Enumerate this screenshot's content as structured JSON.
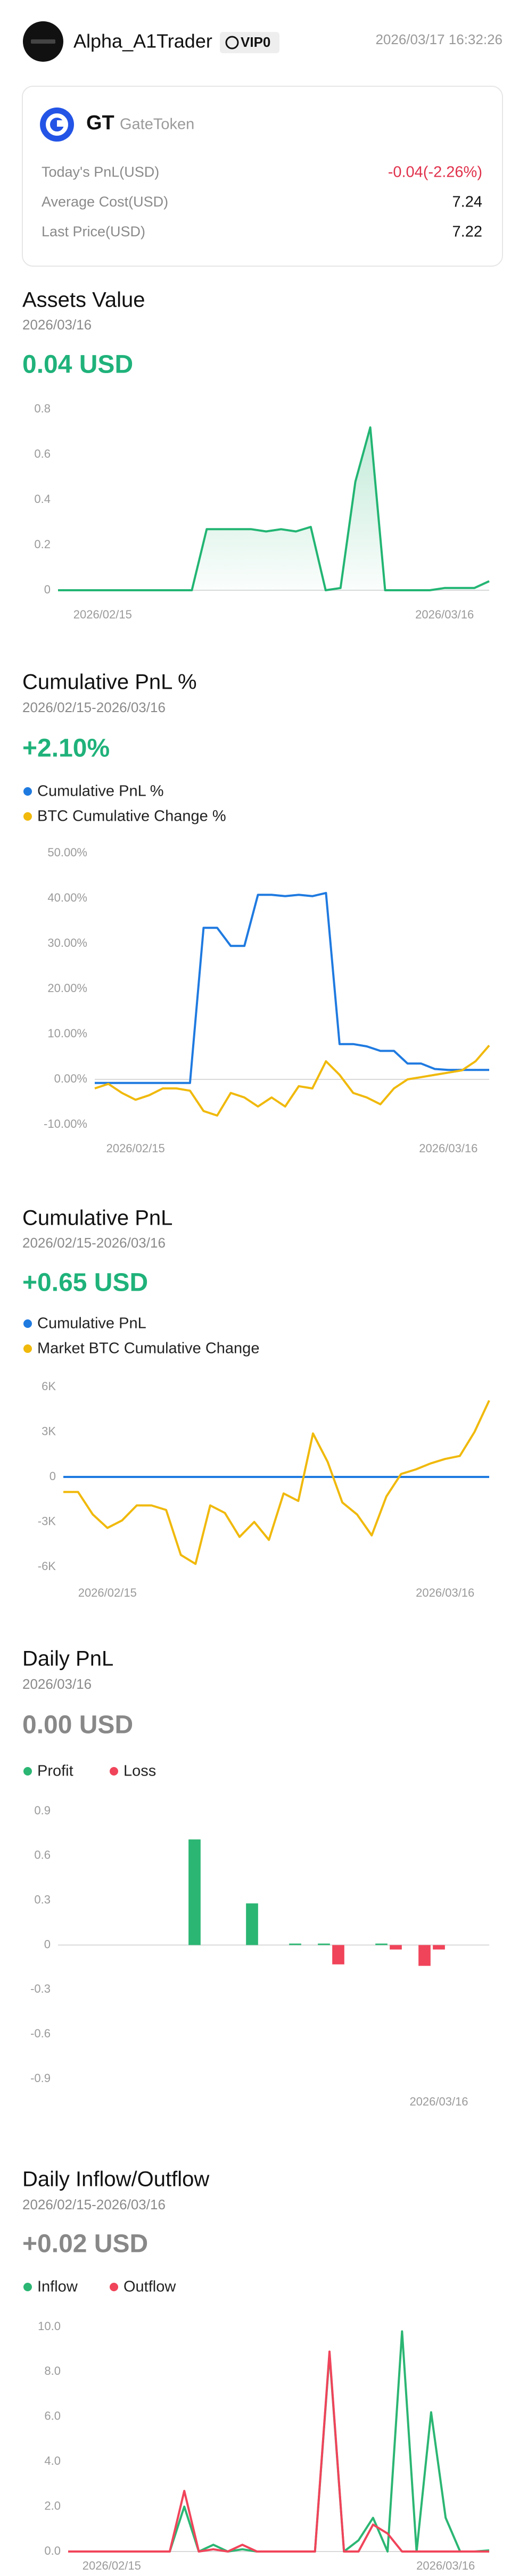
{
  "header": {
    "name": "Alpha_A1Trader",
    "badge": "VIP0",
    "timestamp": "2026/03/17 16:32:26"
  },
  "card": {
    "symbol": "GT",
    "name": "GateToken",
    "rows": [
      {
        "label": "Today's PnL(USD)",
        "value": "-0.04(-2.26%)",
        "color": "#e0314b"
      },
      {
        "label": "Average Cost(USD)",
        "value": "7.24",
        "color": "#111111"
      },
      {
        "label": "Last Price(USD)",
        "value": "7.22",
        "color": "#111111"
      }
    ]
  },
  "chart_data": [
    {
      "type": "line",
      "title": "Assets Value",
      "subtitle": "2026/03/16",
      "summary": "0.04 USD",
      "summary_color": "#1fb27a",
      "area": true,
      "color": "#22b573",
      "grid": false,
      "categories": [
        null,
        null,
        null,
        "2026/02/15",
        null,
        null,
        null,
        null,
        null,
        null,
        null,
        null,
        null,
        null,
        null,
        null,
        null,
        null,
        null,
        null,
        null,
        null,
        null,
        null,
        null,
        null,
        "2026/03/16",
        null,
        null,
        null
      ],
      "values": [
        0,
        0,
        0,
        0,
        0,
        0,
        0,
        0,
        0,
        0,
        0.27,
        0.27,
        0.27,
        0.27,
        0.26,
        0.27,
        0.26,
        0.28,
        0,
        0.01,
        0.48,
        0.72,
        0,
        0,
        0,
        0,
        0.01,
        0.01,
        0.01,
        0.04
      ],
      "ylim": [
        0,
        0.8
      ],
      "yticks": [
        0,
        0.2,
        0.4,
        0.6,
        0.8
      ]
    },
    {
      "type": "line",
      "title": "Cumulative PnL %",
      "subtitle": "2026/02/15-2026/03/16",
      "summary": "+2.10%",
      "summary_color": "#1fb27a",
      "legend": "stacked",
      "grid": false,
      "categories": [
        null,
        null,
        null,
        "2026/02/15",
        null,
        null,
        null,
        null,
        null,
        null,
        null,
        null,
        null,
        null,
        null,
        null,
        null,
        null,
        null,
        null,
        null,
        null,
        null,
        null,
        null,
        null,
        "2026/03/16",
        null,
        null,
        null
      ],
      "series": [
        {
          "name": "Cumulative PnL %",
          "color": "#1f7ae0",
          "values": [
            -0.8,
            -0.8,
            -0.8,
            -0.8,
            -0.8,
            -0.8,
            -0.8,
            -0.8,
            33.5,
            33.5,
            29.5,
            29.5,
            40.8,
            40.8,
            40.5,
            40.8,
            40.5,
            41.2,
            7.8,
            7.8,
            7.3,
            6.3,
            6.3,
            3.5,
            3.5,
            2.3,
            2.1,
            2.1,
            2.1,
            2.1
          ]
        },
        {
          "name": "BTC Cumulative Change %",
          "color": "#f0b90b",
          "values": [
            -2,
            -1,
            -3,
            -4.5,
            -3.5,
            -2,
            -2,
            -2.5,
            -7,
            -8,
            -3,
            -4,
            -6,
            -4,
            -6,
            -1.5,
            -2,
            4,
            1,
            -3,
            -4,
            -5.5,
            -2,
            0,
            0.5,
            1,
            1.5,
            2,
            4,
            7.5
          ]
        }
      ],
      "ylim": [
        -10,
        50
      ],
      "yticks": [
        {
          "value": -10,
          "label": "-10.00%"
        },
        {
          "value": 0,
          "label": "0.00%"
        },
        {
          "value": 10,
          "label": "10.00%"
        },
        {
          "value": 20,
          "label": "20.00%"
        },
        {
          "value": 30,
          "label": "30.00%"
        },
        {
          "value": 40,
          "label": "40.00%"
        },
        {
          "value": 50,
          "label": "50.00%"
        }
      ]
    },
    {
      "type": "line",
      "title": "Cumulative PnL",
      "subtitle": "2026/02/15-2026/03/16",
      "summary": "+0.65 USD",
      "summary_color": "#1fb27a",
      "legend": "stacked",
      "grid": false,
      "categories": [
        null,
        null,
        null,
        "2026/02/15",
        null,
        null,
        null,
        null,
        null,
        null,
        null,
        null,
        null,
        null,
        null,
        null,
        null,
        null,
        null,
        null,
        null,
        null,
        null,
        null,
        null,
        null,
        "2026/03/16",
        null,
        null,
        null
      ],
      "series": [
        {
          "name": "Cumulative PnL",
          "color": "#1f7ae0",
          "values": [
            0,
            0,
            0,
            0,
            0,
            0,
            0,
            0,
            0,
            0,
            0,
            0,
            0,
            0,
            0,
            0,
            0,
            0,
            0,
            0,
            0,
            0,
            0,
            0,
            0,
            0,
            0,
            0,
            0,
            0.65
          ]
        },
        {
          "name": "Market BTC Cumulative Change",
          "color": "#f0b90b",
          "values": [
            -1000,
            -1000,
            -2500,
            -3400,
            -2900,
            -1900,
            -1900,
            -2200,
            -5200,
            -5800,
            -1900,
            -2400,
            -4000,
            -3000,
            -4200,
            -1100,
            -1600,
            2900,
            1000,
            -1700,
            -2500,
            -3900,
            -1300,
            200,
            500,
            900,
            1200,
            1400,
            3000,
            5100
          ]
        }
      ],
      "ylim": [
        -6000,
        6000
      ],
      "yticks": [
        {
          "value": -6000,
          "label": "-6K"
        },
        {
          "value": -3000,
          "label": "-3K"
        },
        0,
        {
          "value": 3000,
          "label": "3K"
        },
        {
          "value": 6000,
          "label": "6K"
        }
      ]
    },
    {
      "type": "bar",
      "title": "Daily PnL",
      "subtitle": "2026/03/16",
      "summary": "0.00 USD",
      "summary_color": "#888888",
      "legend": "row",
      "grid": false,
      "categories": [
        null,
        null,
        null,
        null,
        null,
        null,
        null,
        null,
        null,
        null,
        null,
        null,
        null,
        null,
        null,
        null,
        null,
        null,
        null,
        null,
        null,
        null,
        null,
        null,
        null,
        null,
        "2026/03/16",
        null,
        null,
        null
      ],
      "series": [
        {
          "name": "Profit",
          "color": "#2bb673",
          "values": [
            null,
            null,
            null,
            null,
            null,
            null,
            null,
            null,
            null,
            0.71,
            null,
            null,
            null,
            0.28,
            null,
            null,
            0.01,
            null,
            0.01,
            null,
            null,
            null,
            0.01,
            null,
            null,
            null,
            null,
            null,
            null,
            null
          ]
        },
        {
          "name": "Loss",
          "color": "#f0445a",
          "values": [
            null,
            null,
            null,
            null,
            null,
            null,
            null,
            null,
            null,
            null,
            null,
            null,
            null,
            null,
            null,
            null,
            null,
            null,
            null,
            -0.13,
            null,
            null,
            null,
            -0.03,
            null,
            -0.14,
            -0.03,
            null,
            null,
            null
          ]
        }
      ],
      "ylim": [
        -0.9,
        0.9
      ],
      "yticks": [
        -0.9,
        -0.6,
        -0.3,
        0,
        0.3,
        0.6,
        0.9
      ]
    },
    {
      "type": "line",
      "title": "Daily Inflow/Outflow",
      "subtitle": "2026/02/15-2026/03/16",
      "summary": "+0.02 USD",
      "summary_color": "#888888",
      "legend": "row",
      "grid": false,
      "categories": [
        null,
        null,
        null,
        "2026/02/15",
        null,
        null,
        null,
        null,
        null,
        null,
        null,
        null,
        null,
        null,
        null,
        null,
        null,
        null,
        null,
        null,
        null,
        null,
        null,
        null,
        null,
        null,
        "2026/03/16",
        null,
        null,
        null
      ],
      "series": [
        {
          "name": "Inflow",
          "color": "#2bb673",
          "values": [
            0,
            0,
            0,
            0,
            0,
            0,
            0,
            0,
            2.0,
            0,
            0.3,
            0,
            0.1,
            0,
            0,
            0,
            0,
            0,
            8.8,
            0,
            0.5,
            1.5,
            0,
            9.8,
            0,
            6.2,
            1.5,
            0,
            0,
            0.05
          ]
        },
        {
          "name": "Outflow",
          "color": "#f0445a",
          "values": [
            0,
            0,
            0,
            0,
            0,
            0,
            0,
            0,
            2.7,
            0,
            0.1,
            0,
            0.3,
            0,
            0,
            0,
            0,
            0,
            8.9,
            0,
            0,
            1.2,
            0.8,
            0,
            0,
            0,
            0,
            0,
            0,
            0
          ]
        }
      ],
      "ylim": [
        0,
        10
      ],
      "yticks": [
        {
          "value": 0,
          "label": "0.0"
        },
        {
          "value": 2,
          "label": "2.0"
        },
        {
          "value": 4,
          "label": "4.0"
        },
        {
          "value": 6,
          "label": "6.0"
        },
        {
          "value": 8,
          "label": "8.0"
        },
        {
          "value": 10,
          "label": "10.0"
        }
      ]
    }
  ]
}
